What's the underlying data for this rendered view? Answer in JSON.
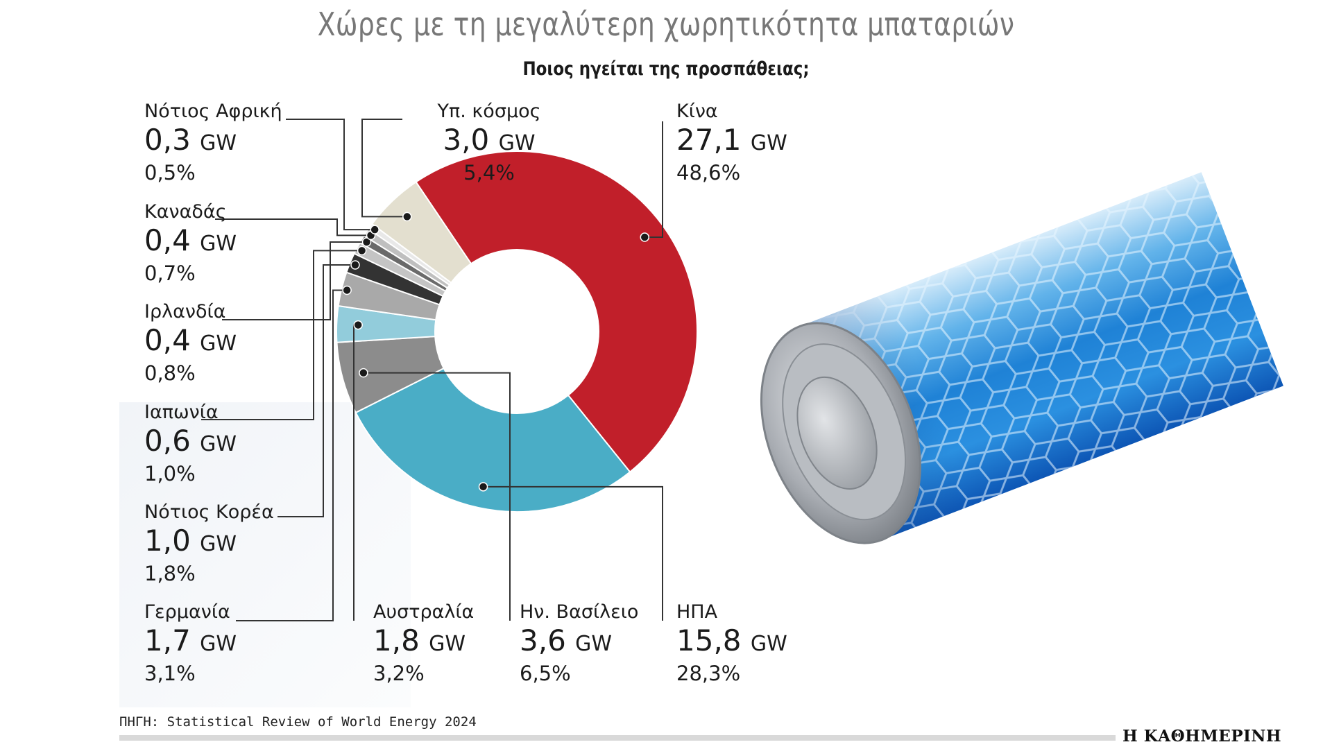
{
  "title": "Χώρες με τη μεγαλύτερη χωρητικότητα μπαταριών",
  "subtitle": "Ποιος ηγείται της προσπάθειας;",
  "source": "ΠΗΓΗ: Statistical Review of World Energy 2024",
  "brand": "Η ΚΑΘΗΜΕΡΙΝΗ",
  "unit": "GW",
  "chart_data": {
    "type": "pie",
    "title": "Χώρες με τη μεγαλύτερη χωρητικότητα μπαταριών",
    "subtitle": "Ποιος ηγείται της προσπάθειας;",
    "unit": "GW",
    "slices": [
      {
        "name": "Κίνα",
        "value": 27.1,
        "value_label": "27,1",
        "percent": 48.6,
        "percent_label": "48,6%",
        "color": "#c11f2a"
      },
      {
        "name": "ΗΠΑ",
        "value": 15.8,
        "value_label": "15,8",
        "percent": 28.3,
        "percent_label": "28,3%",
        "color": "#4aadc6"
      },
      {
        "name": "Ην. Βασίλειο",
        "value": 3.6,
        "value_label": "3,6",
        "percent": 6.5,
        "percent_label": "6,5%",
        "color": "#8c8c8c"
      },
      {
        "name": "Αυστραλία",
        "value": 1.8,
        "value_label": "1,8",
        "percent": 3.2,
        "percent_label": "3,2%",
        "color": "#92ccdb"
      },
      {
        "name": "Γερμανία",
        "value": 1.7,
        "value_label": "1,7",
        "percent": 3.1,
        "percent_label": "3,1%",
        "color": "#a9a9a9"
      },
      {
        "name": "Νότιος Κορέα",
        "value": 1.0,
        "value_label": "1,0",
        "percent": 1.8,
        "percent_label": "1,8%",
        "color": "#333333"
      },
      {
        "name": "Ιαπωνία",
        "value": 0.6,
        "value_label": "0,6",
        "percent": 1.0,
        "percent_label": "1,0%",
        "color": "#c4c4c4"
      },
      {
        "name": "Ιρλανδία",
        "value": 0.4,
        "value_label": "0,4",
        "percent": 0.8,
        "percent_label": "0,8%",
        "color": "#6a6a6a"
      },
      {
        "name": "Καναδάς",
        "value": 0.4,
        "value_label": "0,4",
        "percent": 0.7,
        "percent_label": "0,7%",
        "color": "#bfbfbf"
      },
      {
        "name": "Νότιος Αφρική",
        "value": 0.3,
        "value_label": "0,3",
        "percent": 0.5,
        "percent_label": "0,5%",
        "color": "#e8e8e8"
      },
      {
        "name": "Υπ. κόσμος",
        "value": 3.0,
        "value_label": "3,0",
        "percent": 5.4,
        "percent_label": "5,4%",
        "color": "#e3dfcf"
      }
    ]
  }
}
